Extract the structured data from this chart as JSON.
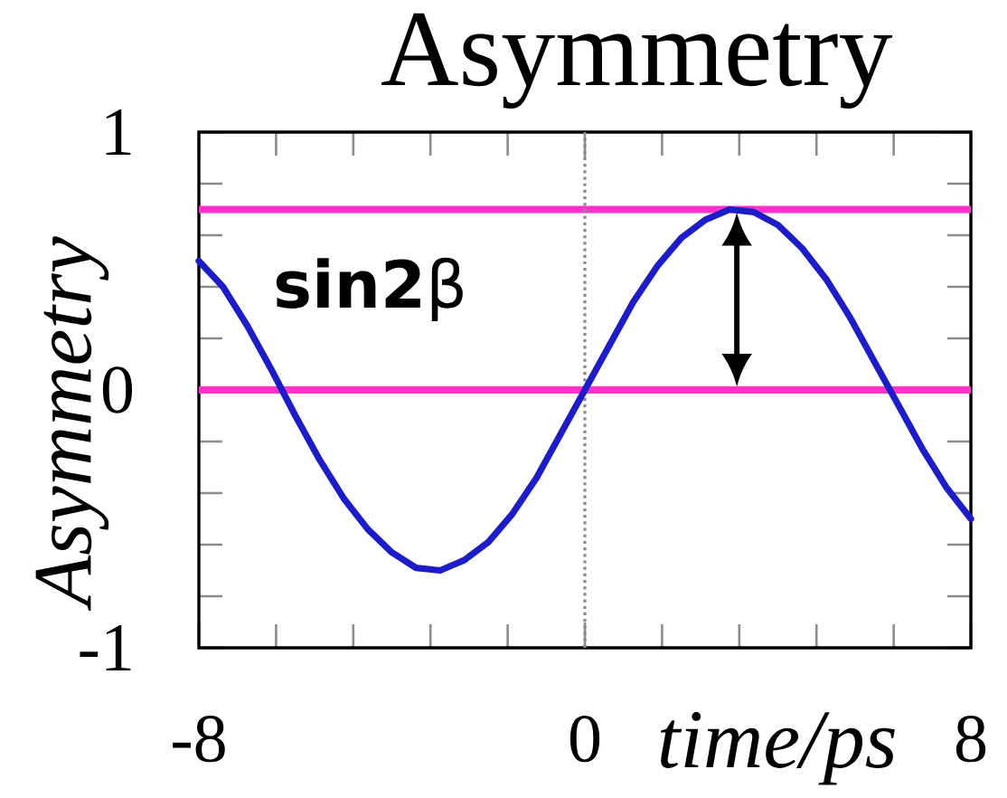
{
  "chart_data": {
    "type": "line",
    "title": "Asymmetry",
    "xlabel": "time/ps",
    "ylabel": "Asymmetry",
    "x": [
      -8,
      -7.5,
      -7,
      -6.5,
      -6,
      -5.5,
      -5,
      -4.5,
      -4,
      -3.5,
      -3,
      -2.5,
      -2,
      -1.5,
      -1,
      -0.5,
      0,
      0.5,
      1,
      1.5,
      2,
      2.5,
      3,
      3.5,
      4,
      4.5,
      5,
      5.5,
      6,
      6.5,
      7,
      7.5,
      8
    ],
    "series": [
      {
        "color": "#1c1cc8",
        "values": [
          0.5,
          0.4,
          0.25,
          0.08,
          -0.1,
          -0.27,
          -0.42,
          -0.54,
          -0.63,
          -0.69,
          -0.7,
          -0.66,
          -0.59,
          -0.48,
          -0.34,
          -0.17,
          0,
          0.17,
          0.34,
          0.48,
          0.59,
          0.66,
          0.7,
          0.69,
          0.64,
          0.55,
          0.43,
          0.28,
          0.11,
          -0.06,
          -0.23,
          -0.38,
          -0.5
        ]
      }
    ],
    "xlim": [
      -8,
      8
    ],
    "ylim": [
      -1,
      1
    ],
    "xticks": [
      -8,
      0,
      8
    ],
    "yticks": [
      -1,
      0,
      1
    ],
    "ref_lines": [
      {
        "axis": "y",
        "value": 0,
        "color": "#ff33cc"
      },
      {
        "axis": "y",
        "value": 0.7,
        "color": "#ff33cc"
      },
      {
        "axis": "x",
        "value": 0,
        "color": "#888888",
        "line_style": "dotted"
      }
    ],
    "annotations": [
      "**sin2**β"
    ],
    "marker": "none",
    "line_style": "solid"
  }
}
